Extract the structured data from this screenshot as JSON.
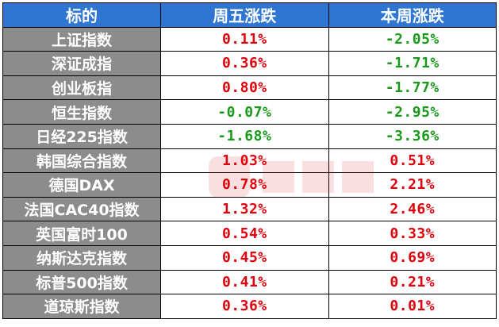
{
  "table": {
    "headers": [
      "标的",
      "周五涨跌",
      "本周涨跌"
    ],
    "rows": [
      {
        "name": "上证指数",
        "fri": "0.11%",
        "fri_dir": "up",
        "week": "-2.05%",
        "week_dir": "down"
      },
      {
        "name": "深证成指",
        "fri": "0.36%",
        "fri_dir": "up",
        "week": "-1.71%",
        "week_dir": "down"
      },
      {
        "name": "创业板指",
        "fri": "0.80%",
        "fri_dir": "up",
        "week": "-1.77%",
        "week_dir": "down"
      },
      {
        "name": "恒生指数",
        "fri": "-0.07%",
        "fri_dir": "down",
        "week": "-2.95%",
        "week_dir": "down"
      },
      {
        "name": "日经225指数",
        "fri": "-1.68%",
        "fri_dir": "down",
        "week": "-3.36%",
        "week_dir": "down"
      },
      {
        "name": "韩国综合指数",
        "fri": "1.03%",
        "fri_dir": "up",
        "week": "0.51%",
        "week_dir": "up"
      },
      {
        "name": "德国DAX",
        "fri": "0.78%",
        "fri_dir": "up",
        "week": "2.21%",
        "week_dir": "up"
      },
      {
        "name": "法国CAC40指数",
        "fri": "1.32%",
        "fri_dir": "up",
        "week": "2.46%",
        "week_dir": "up"
      },
      {
        "name": "英国富时100",
        "fri": "0.54%",
        "fri_dir": "up",
        "week": "0.33%",
        "week_dir": "up"
      },
      {
        "name": "纳斯达克指数",
        "fri": "0.45%",
        "fri_dir": "up",
        "week": "0.69%",
        "week_dir": "up"
      },
      {
        "name": "标普500指数",
        "fri": "0.41%",
        "fri_dir": "up",
        "week": "0.21%",
        "week_dir": "up"
      },
      {
        "name": "道琼斯指数",
        "fri": "0.36%",
        "fri_dir": "up",
        "week": "0.01%",
        "week_dir": "up"
      }
    ]
  },
  "colors": {
    "header_bg": "#2e76d2",
    "name_bg": "#8c8c8c",
    "up": "#e0000b",
    "down": "#1a9a1a"
  },
  "watermark_icon": "cailian-logo-watermark"
}
